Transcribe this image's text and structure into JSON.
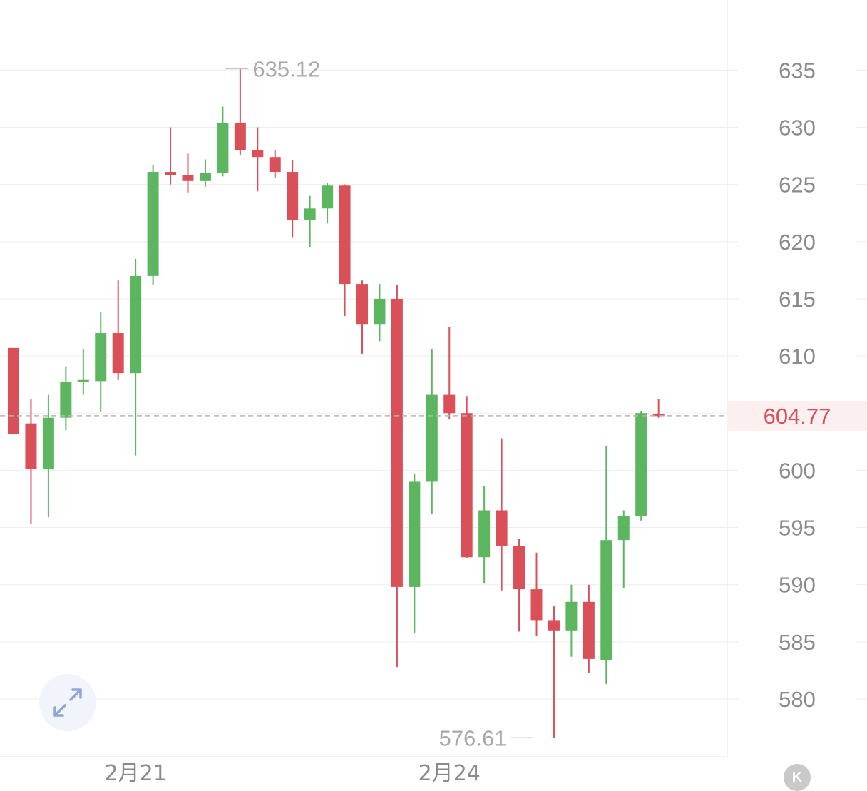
{
  "chart_data": {
    "type": "candlestick",
    "y_ticks": [
      580,
      585,
      590,
      595,
      600,
      605,
      610,
      615,
      620,
      625,
      630,
      635
    ],
    "y_tick_labels": [
      "580",
      "585",
      "590",
      "595",
      "600",
      "",
      "610",
      "615",
      "620",
      "625",
      "630",
      "635"
    ],
    "x_labels": [
      {
        "label": "2月21",
        "index": 7
      },
      {
        "label": "2月24",
        "index": 25
      }
    ],
    "current_price": 604.77,
    "current_price_label": "604.77",
    "high_marker": {
      "label": "635.12",
      "value": 635.12,
      "index": 12
    },
    "low_marker": {
      "label": "576.61",
      "value": 576.61,
      "index": 30
    },
    "colors": {
      "up": "#5cb65f",
      "down": "#d95058",
      "grid": "#eeeeee",
      "axis_text": "#8a8a8a",
      "price_text": "#d95058",
      "price_bg": "#fbeff0",
      "marker_text": "#a8a8a8"
    },
    "candles": [
      {
        "o": 610.7,
        "h": 610.7,
        "l": 603.2,
        "c": 603.2
      },
      {
        "o": 604.1,
        "h": 606.2,
        "l": 595.3,
        "c": 600.1
      },
      {
        "o": 600.1,
        "h": 606.6,
        "l": 595.9,
        "c": 604.6
      },
      {
        "o": 604.6,
        "h": 609.1,
        "l": 603.5,
        "c": 607.7
      },
      {
        "o": 607.7,
        "h": 610.6,
        "l": 606.6,
        "c": 607.9
      },
      {
        "o": 607.8,
        "h": 613.8,
        "l": 605.1,
        "c": 612.0
      },
      {
        "o": 612.0,
        "h": 616.6,
        "l": 607.9,
        "c": 608.5
      },
      {
        "o": 608.5,
        "h": 618.5,
        "l": 601.3,
        "c": 617.0
      },
      {
        "o": 617.0,
        "h": 626.7,
        "l": 616.2,
        "c": 626.1
      },
      {
        "o": 626.1,
        "h": 630.0,
        "l": 625.0,
        "c": 625.8
      },
      {
        "o": 625.8,
        "h": 627.7,
        "l": 624.3,
        "c": 625.3
      },
      {
        "o": 625.3,
        "h": 627.2,
        "l": 624.8,
        "c": 626.0
      },
      {
        "o": 626.0,
        "h": 631.8,
        "l": 625.7,
        "c": 630.4
      },
      {
        "o": 630.4,
        "h": 635.12,
        "l": 627.6,
        "c": 628.0
      },
      {
        "o": 628.0,
        "h": 630.0,
        "l": 624.4,
        "c": 627.4
      },
      {
        "o": 627.4,
        "h": 628.0,
        "l": 625.6,
        "c": 626.1
      },
      {
        "o": 626.1,
        "h": 627.1,
        "l": 620.4,
        "c": 621.9
      },
      {
        "o": 621.9,
        "h": 624.0,
        "l": 619.5,
        "c": 622.9
      },
      {
        "o": 622.9,
        "h": 625.1,
        "l": 621.6,
        "c": 624.9
      },
      {
        "o": 624.9,
        "h": 625.0,
        "l": 613.5,
        "c": 616.3
      },
      {
        "o": 616.3,
        "h": 616.6,
        "l": 610.2,
        "c": 612.8
      },
      {
        "o": 612.8,
        "h": 616.3,
        "l": 611.3,
        "c": 615.0
      },
      {
        "o": 615.0,
        "h": 616.2,
        "l": 582.8,
        "c": 589.8
      },
      {
        "o": 589.8,
        "h": 599.7,
        "l": 585.8,
        "c": 599.0
      },
      {
        "o": 599.0,
        "h": 610.6,
        "l": 596.2,
        "c": 606.6
      },
      {
        "o": 606.6,
        "h": 612.5,
        "l": 604.5,
        "c": 605.0
      },
      {
        "o": 605.0,
        "h": 606.5,
        "l": 592.3,
        "c": 592.4
      },
      {
        "o": 592.4,
        "h": 598.6,
        "l": 590.1,
        "c": 596.5
      },
      {
        "o": 596.5,
        "h": 602.8,
        "l": 589.5,
        "c": 593.4
      },
      {
        "o": 593.4,
        "h": 594.0,
        "l": 585.9,
        "c": 589.6
      },
      {
        "o": 589.6,
        "h": 592.8,
        "l": 585.5,
        "c": 586.9
      },
      {
        "o": 586.9,
        "h": 588.1,
        "l": 576.61,
        "c": 586.0
      },
      {
        "o": 586.0,
        "h": 590.0,
        "l": 583.7,
        "c": 588.5
      },
      {
        "o": 588.5,
        "h": 590.0,
        "l": 582.3,
        "c": 583.5
      },
      {
        "o": 583.4,
        "h": 602.1,
        "l": 581.3,
        "c": 593.9
      },
      {
        "o": 593.9,
        "h": 596.5,
        "l": 589.7,
        "c": 596.0
      },
      {
        "o": 596.0,
        "h": 605.2,
        "l": 595.6,
        "c": 605.0
      },
      {
        "o": 604.9,
        "h": 606.2,
        "l": 604.6,
        "c": 604.77
      }
    ]
  },
  "controls": {
    "expand_icon": "expand-arrows-icon",
    "k_badge_label": "K"
  }
}
